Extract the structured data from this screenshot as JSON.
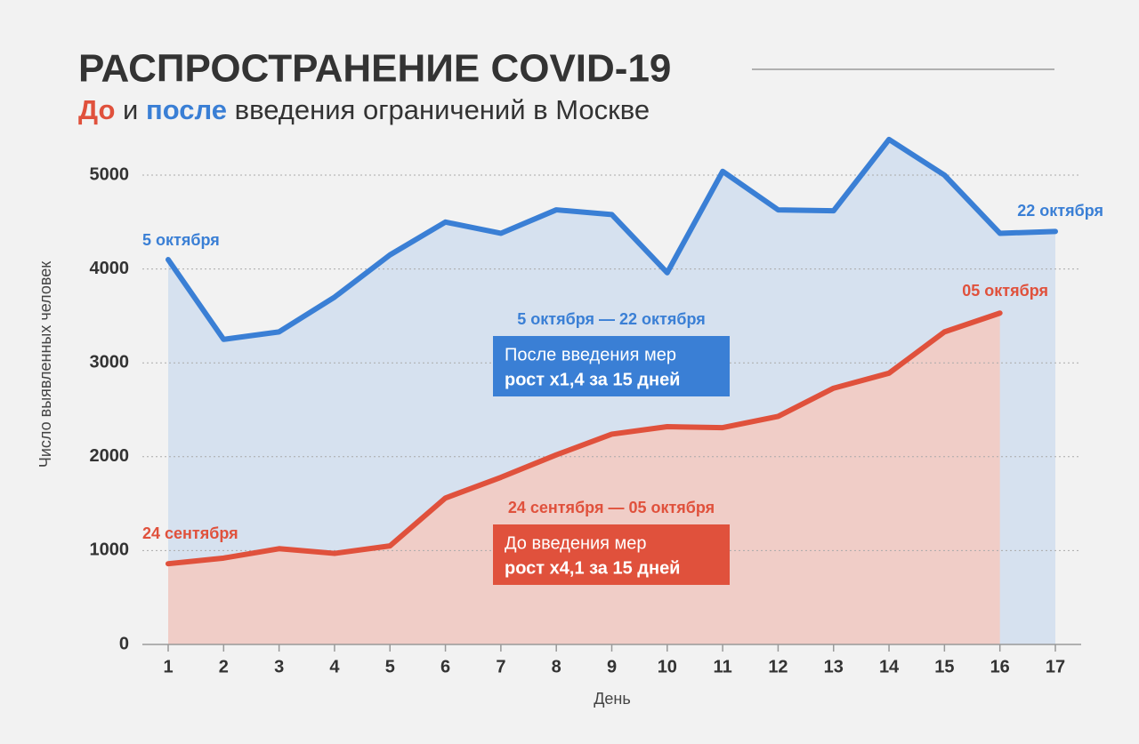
{
  "chart_data": {
    "type": "area",
    "title": "РАСПРОСТРАНЕНИЕ COVID-19",
    "subtitle": [
      "До",
      "и",
      "после",
      "введения ограничений в Москве"
    ],
    "xlabel": "День",
    "ylabel": "Число выявленных человек",
    "x": [
      1,
      2,
      3,
      4,
      5,
      6,
      7,
      8,
      9,
      10,
      11,
      12,
      13,
      14,
      15,
      16,
      17
    ],
    "xlim": [
      1,
      17
    ],
    "xticks": [
      1,
      2,
      3,
      4,
      5,
      6,
      7,
      8,
      9,
      10,
      11,
      12,
      13,
      14,
      15,
      16,
      17
    ],
    "ylim": [
      0,
      5000
    ],
    "yticks": [
      0,
      1000,
      2000,
      3000,
      4000,
      5000
    ],
    "grid": true,
    "series": [
      {
        "name": "После введения мер",
        "color": "#3a7fd5",
        "fill": "#d6e1ef",
        "values": [
          4100,
          3250,
          3330,
          3700,
          4150,
          4500,
          4380,
          4630,
          4580,
          3960,
          5040,
          4630,
          4620,
          5380,
          5000,
          4380,
          4400
        ]
      },
      {
        "name": "До введения мер",
        "color": "#e0513c",
        "fill": "#f0cdc7",
        "values": [
          860,
          920,
          1020,
          970,
          1050,
          1560,
          1780,
          2020,
          2240,
          2320,
          2310,
          2430,
          2730,
          2890,
          3330,
          3530,
          null
        ]
      }
    ],
    "annotations": [
      "5 октября",
      "22 октября",
      "24 сентября",
      "05 октября"
    ],
    "boxes": [
      {
        "range": "5 октября — 22 октября",
        "line1": "После введения мер",
        "line2": "рост x1,4 за 15 дней"
      },
      {
        "range": "24 сентября — 05 октября",
        "line1": "До введения мер",
        "line2": "рост x4,1 за 15 дней"
      }
    ]
  }
}
